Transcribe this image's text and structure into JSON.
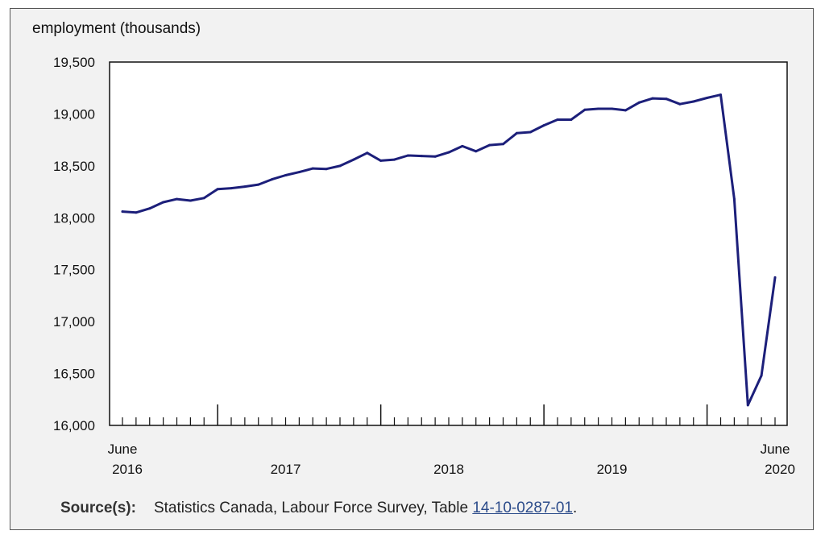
{
  "chart_data": {
    "type": "line",
    "ylabel": "employment (thousands)",
    "ylim": [
      16000,
      19500
    ],
    "yticks": [
      "16,000",
      "16,500",
      "17,000",
      "17,500",
      "18,000",
      "18,500",
      "19,000",
      "19,500"
    ],
    "x_start": "2016-06",
    "x_end": "2020-06",
    "x_tick_labels": [
      {
        "label": "June",
        "sub": "2016",
        "month": "2016-06"
      },
      {
        "label": "",
        "sub": "2017",
        "month": "2017-06"
      },
      {
        "label": "",
        "sub": "2018",
        "month": "2018-06"
      },
      {
        "label": "",
        "sub": "2019",
        "month": "2019-06"
      },
      {
        "label": "June",
        "sub": "2020",
        "month": "2020-06"
      }
    ],
    "series": [
      {
        "color": "#1c1f7a",
        "x": [
          "2016-06",
          "2016-07",
          "2016-08",
          "2016-09",
          "2016-10",
          "2016-11",
          "2016-12",
          "2017-01",
          "2017-02",
          "2017-03",
          "2017-04",
          "2017-05",
          "2017-06",
          "2017-07",
          "2017-08",
          "2017-09",
          "2017-10",
          "2017-11",
          "2017-12",
          "2018-01",
          "2018-02",
          "2018-03",
          "2018-04",
          "2018-05",
          "2018-06",
          "2018-07",
          "2018-08",
          "2018-09",
          "2018-10",
          "2018-11",
          "2018-12",
          "2019-01",
          "2019-02",
          "2019-03",
          "2019-04",
          "2019-05",
          "2019-06",
          "2019-07",
          "2019-08",
          "2019-09",
          "2019-10",
          "2019-11",
          "2019-12",
          "2020-01",
          "2020-02",
          "2020-03",
          "2020-04",
          "2020-05",
          "2020-06"
        ],
        "values": [
          18060,
          18050,
          18090,
          18150,
          18180,
          18165,
          18190,
          18275,
          18285,
          18300,
          18320,
          18370,
          18410,
          18440,
          18475,
          18470,
          18500,
          18560,
          18625,
          18550,
          18560,
          18600,
          18595,
          18590,
          18630,
          18690,
          18640,
          18700,
          18710,
          18815,
          18825,
          18890,
          18945,
          18945,
          19040,
          19050,
          19050,
          19035,
          19110,
          19150,
          19145,
          19095,
          19120,
          19155,
          19185,
          18180,
          16195,
          16480,
          17425
        ]
      }
    ]
  },
  "source": {
    "label": "Source(s):",
    "text": "Statistics Canada, Labour Force Survey, Table ",
    "link": "14-10-0287-01",
    "end": "."
  }
}
